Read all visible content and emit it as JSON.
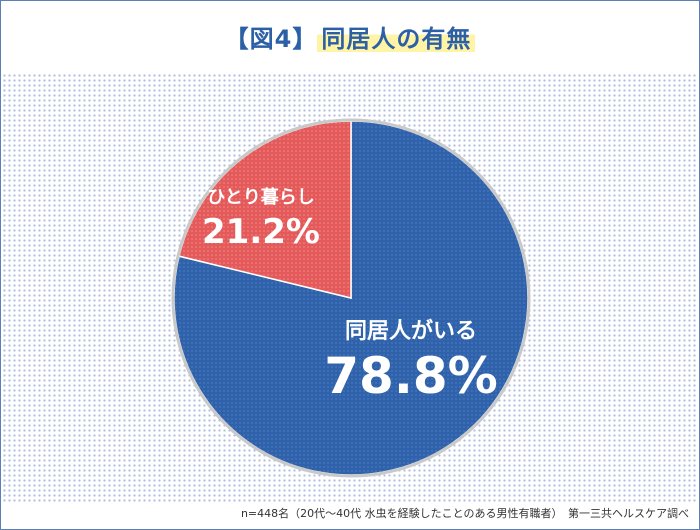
{
  "header": {
    "figure_tag": "【図4】",
    "title": "同居人の有無"
  },
  "chart_data": {
    "type": "pie",
    "categories": [
      "同居人がいる",
      "ひとり暮らし"
    ],
    "values": [
      78.8,
      21.2
    ],
    "value_labels": [
      "78.8%",
      "21.2%"
    ],
    "colors": [
      "#2f62aa",
      "#e45a5a"
    ],
    "start": "12 o'clock",
    "direction": "clockwise"
  },
  "footer": {
    "note": "n=448名（20代〜40代 水虫を経験したことのある男性有職者）　第一三共ヘルスケア調べ"
  }
}
